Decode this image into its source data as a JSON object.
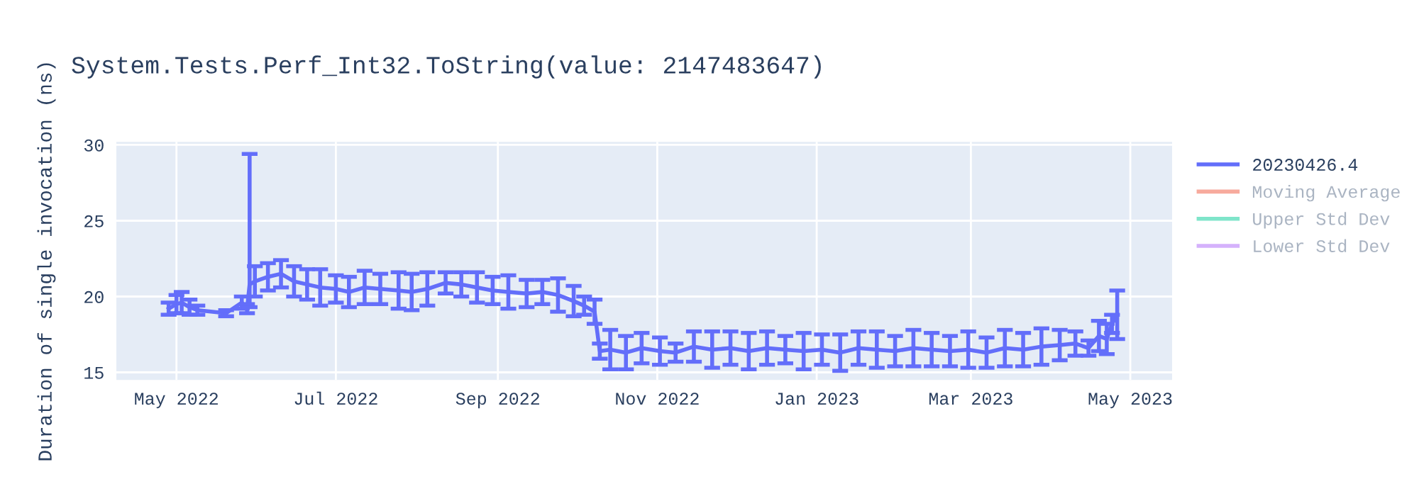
{
  "chart_data": {
    "type": "line",
    "title": "System.Tests.Perf_Int32.ToString(value: 2147483647)",
    "ylabel": "Duration of single invocation (ns)",
    "x": [
      "2022-04-28",
      "2022-05-01",
      "2022-05-03",
      "2022-05-06",
      "2022-05-09",
      "2022-05-20",
      "2022-05-26",
      "2022-05-28",
      "2022-05-29",
      "2022-05-31",
      "2022-06-05",
      "2022-06-10",
      "2022-06-15",
      "2022-06-20",
      "2022-06-25",
      "2022-07-01",
      "2022-07-06",
      "2022-07-12",
      "2022-07-18",
      "2022-07-25",
      "2022-07-30",
      "2022-08-05",
      "2022-08-12",
      "2022-08-18",
      "2022-08-24",
      "2022-08-30",
      "2022-09-05",
      "2022-09-12",
      "2022-09-18",
      "2022-09-24",
      "2022-09-30",
      "2022-10-04",
      "2022-10-08",
      "2022-10-10",
      "2022-10-14",
      "2022-10-20",
      "2022-10-26",
      "2022-11-02",
      "2022-11-08",
      "2022-11-15",
      "2022-11-22",
      "2022-11-29",
      "2022-12-06",
      "2022-12-13",
      "2022-12-20",
      "2022-12-27",
      "2023-01-03",
      "2023-01-10",
      "2023-01-17",
      "2023-01-24",
      "2023-01-31",
      "2023-02-07",
      "2023-02-14",
      "2023-02-21",
      "2023-02-28",
      "2023-03-07",
      "2023-03-14",
      "2023-03-21",
      "2023-03-28",
      "2023-04-04",
      "2023-04-10",
      "2023-04-15",
      "2023-04-19",
      "2023-04-22",
      "2023-04-24",
      "2023-04-26"
    ],
    "series": [
      {
        "name": "20230426.4",
        "color": "#636efa",
        "values": [
          19.2,
          19.5,
          19.6,
          19.3,
          19.1,
          18.9,
          19.6,
          19.2,
          20.8,
          21.0,
          21.3,
          21.5,
          21.0,
          20.8,
          20.6,
          20.5,
          20.3,
          20.6,
          20.5,
          20.4,
          20.3,
          20.5,
          20.9,
          20.8,
          20.6,
          20.4,
          20.3,
          20.2,
          20.3,
          20.1,
          19.7,
          19.4,
          19.0,
          16.4,
          16.5,
          16.3,
          16.6,
          16.4,
          16.3,
          16.7,
          16.5,
          16.6,
          16.4,
          16.6,
          16.5,
          16.4,
          16.5,
          16.3,
          16.6,
          16.5,
          16.4,
          16.6,
          16.5,
          16.4,
          16.5,
          16.3,
          16.6,
          16.5,
          16.7,
          16.8,
          16.9,
          16.6,
          17.4,
          17.2,
          18.2,
          18.8
        ],
        "errors": [
          0.4,
          0.6,
          0.7,
          0.5,
          0.3,
          0.2,
          0.4,
          0.3,
          [
            19.3,
            29.4
          ],
          1.0,
          0.9,
          0.9,
          1.0,
          1.0,
          1.2,
          0.9,
          1.0,
          1.1,
          1.0,
          1.2,
          1.2,
          1.1,
          0.7,
          0.8,
          1.0,
          0.9,
          1.1,
          0.9,
          0.8,
          1.1,
          1.0,
          0.6,
          0.8,
          0.5,
          1.3,
          1.1,
          1.0,
          0.9,
          0.6,
          1.0,
          1.2,
          1.1,
          1.2,
          1.1,
          0.9,
          1.2,
          1.0,
          1.2,
          1.1,
          1.2,
          1.0,
          1.2,
          1.1,
          1.0,
          1.2,
          1.0,
          1.2,
          1.1,
          1.2,
          1.0,
          0.8,
          0.5,
          1.0,
          1.0,
          0.6,
          1.6
        ]
      },
      {
        "name": "Moving Average",
        "color": "#ef553b",
        "values": [
          null,
          null,
          null,
          null,
          null,
          null,
          null,
          null,
          null,
          null,
          null,
          null,
          null,
          null,
          null,
          null,
          null,
          null,
          null,
          null,
          null,
          null,
          null,
          null,
          null,
          null,
          null,
          null,
          null,
          null,
          null,
          null,
          null,
          null,
          null,
          null,
          null,
          null,
          null,
          null,
          null,
          null,
          null,
          null,
          null,
          null,
          null,
          null,
          null,
          null,
          null,
          null,
          null,
          null,
          null,
          null,
          null,
          null,
          null,
          null,
          null,
          null,
          null,
          null,
          null,
          null
        ]
      },
      {
        "name": "Upper Std Dev",
        "color": "#00cc96",
        "values": [
          null,
          null,
          null,
          null,
          null,
          null,
          null,
          null,
          null,
          null,
          null,
          null,
          null,
          null,
          null,
          null,
          null,
          null,
          null,
          null,
          null,
          null,
          null,
          null,
          null,
          null,
          null,
          null,
          null,
          null,
          null,
          null,
          null,
          null,
          null,
          null,
          null,
          null,
          null,
          null,
          null,
          null,
          null,
          null,
          null,
          null,
          null,
          null,
          null,
          null,
          null,
          null,
          null,
          null,
          null,
          null,
          null,
          null,
          null,
          null,
          null,
          null,
          null,
          null,
          null,
          null
        ]
      },
      {
        "name": "Lower Std Dev",
        "color": "#ab63fa",
        "values": [
          null,
          null,
          null,
          null,
          null,
          null,
          null,
          null,
          null,
          null,
          null,
          null,
          null,
          null,
          null,
          null,
          null,
          null,
          null,
          null,
          null,
          null,
          null,
          null,
          null,
          null,
          null,
          null,
          null,
          null,
          null,
          null,
          null,
          null,
          null,
          null,
          null,
          null,
          null,
          null,
          null,
          null,
          null,
          null,
          null,
          null,
          null,
          null,
          null,
          null,
          null,
          null,
          null,
          null,
          null,
          null,
          null,
          null,
          null,
          null,
          null,
          null,
          null,
          null,
          null,
          null
        ]
      }
    ],
    "xlim": [
      "2022-04-08",
      "2023-05-17"
    ],
    "xticks": [
      {
        "value": "2022-05-01",
        "label": "May 2022"
      },
      {
        "value": "2022-07-01",
        "label": "Jul 2022"
      },
      {
        "value": "2022-09-01",
        "label": "Sep 2022"
      },
      {
        "value": "2022-11-01",
        "label": "Nov 2022"
      },
      {
        "value": "2023-01-01",
        "label": "Jan 2023"
      },
      {
        "value": "2023-03-01",
        "label": "Mar 2023"
      },
      {
        "value": "2023-05-01",
        "label": "May 2023"
      }
    ],
    "ylim": [
      14.5,
      30.2
    ],
    "yticks": [
      15,
      20,
      25,
      30
    ],
    "grid": true,
    "legend": "right",
    "marker": "none",
    "line_style": "solid"
  }
}
